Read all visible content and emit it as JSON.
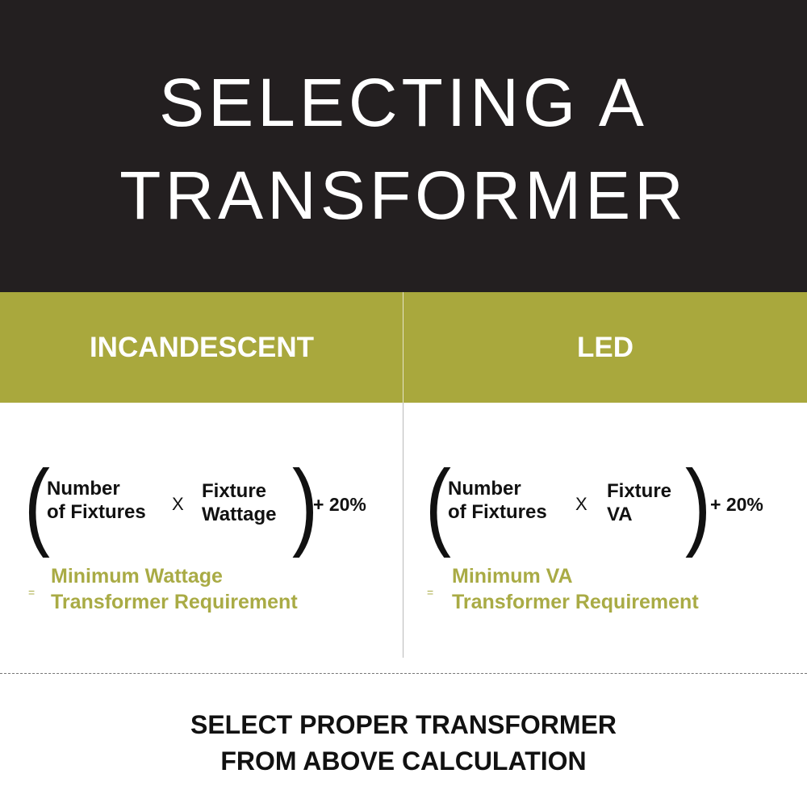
{
  "header": {
    "title_line1": "SELECTING A",
    "title_line2": "TRANSFORMER"
  },
  "colors": {
    "header_bg": "#231f20",
    "accent": "#a9a83d",
    "result_text": "#a9ab45"
  },
  "columns": [
    {
      "heading": "INCANDESCENT",
      "term1_line1": "Number",
      "term1_line2": "of Fixtures",
      "operator": "X",
      "term2_line1": "Fixture",
      "term2_line2": "Wattage",
      "addition": "+ 20%",
      "equals": "=",
      "result_line1": "Minimum Wattage",
      "result_line2": "Transformer Requirement"
    },
    {
      "heading": "LED",
      "term1_line1": "Number",
      "term1_line2": "of Fixtures",
      "operator": "X",
      "term2_line1": "Fixture",
      "term2_line2": "VA",
      "addition": "+ 20%",
      "equals": "=",
      "result_line1": "Minimum VA",
      "result_line2": "Transformer Requirement"
    }
  ],
  "footer": {
    "line1": "SELECT PROPER TRANSFORMER",
    "line2": "FROM ABOVE CALCULATION"
  }
}
